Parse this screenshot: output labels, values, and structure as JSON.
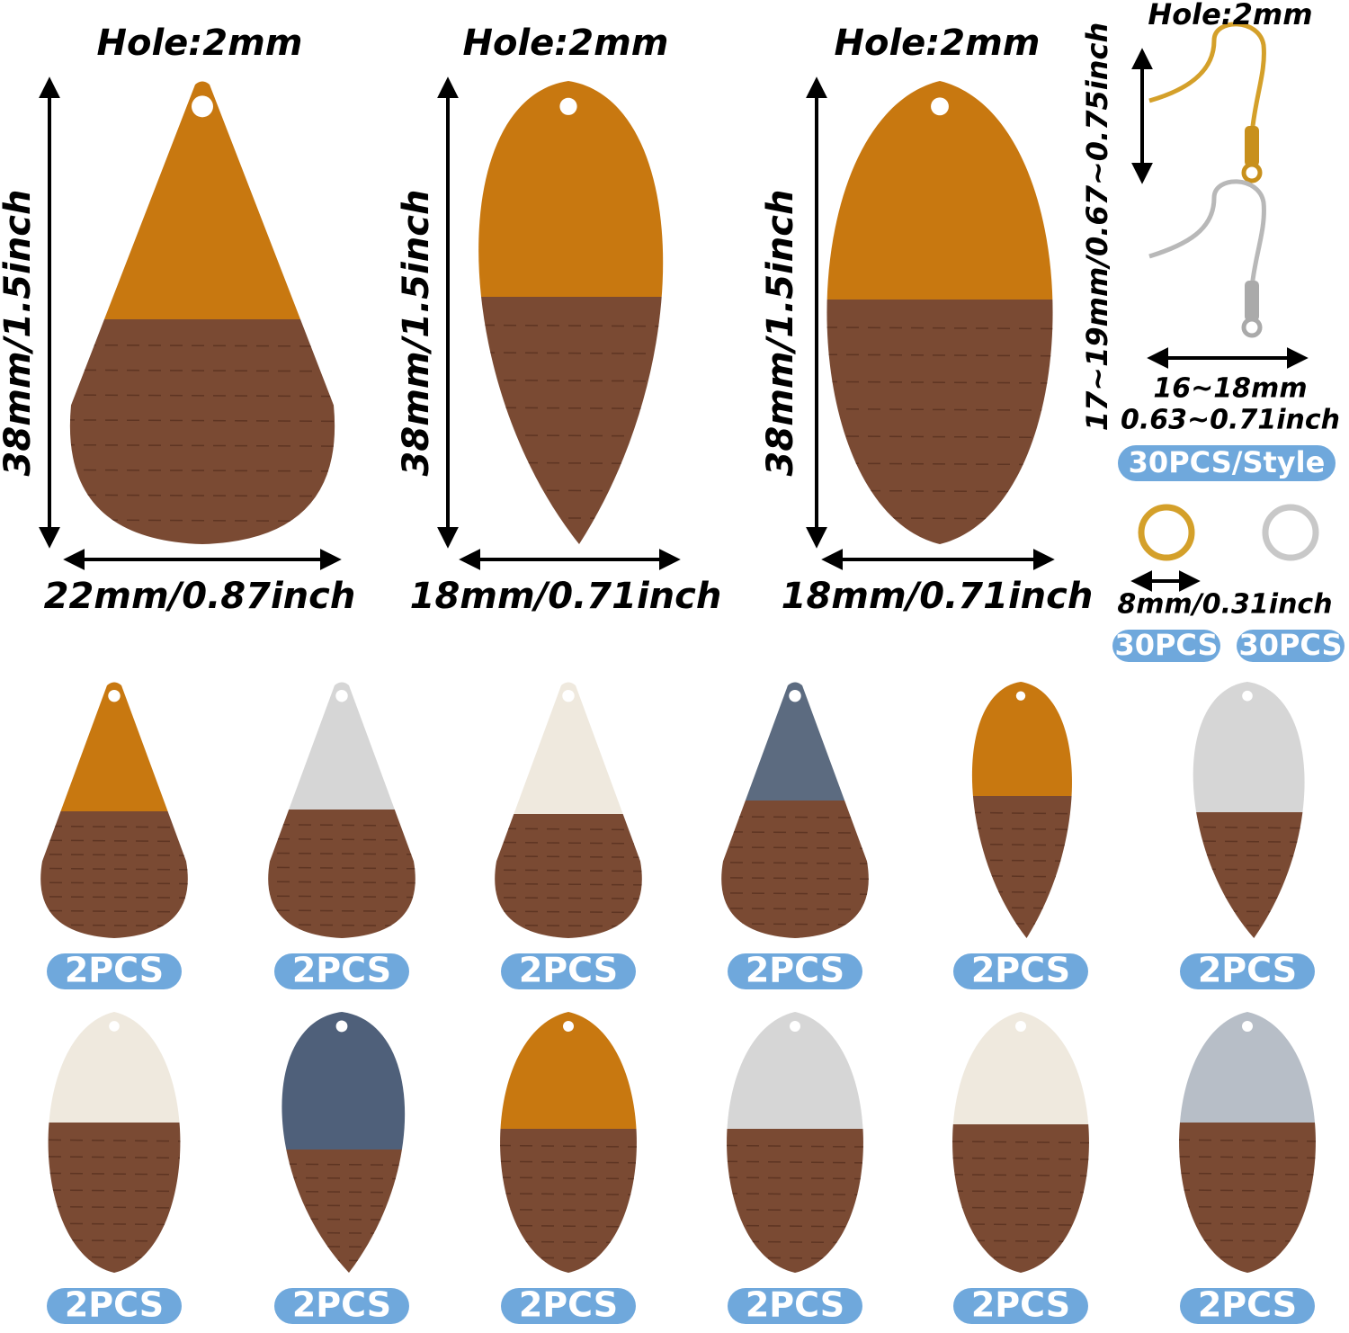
{
  "large_pendants": [
    {
      "hole": "Hole:2mm",
      "height": "38mm/1.5inch",
      "width": "22mm/0.87inch"
    },
    {
      "hole": "Hole:2mm",
      "height": "38mm/1.5inch",
      "width": "18mm/0.71inch"
    },
    {
      "hole": "Hole:2mm",
      "height": "38mm/1.5inch",
      "width": "18mm/0.71inch"
    }
  ],
  "ear_hooks": {
    "hole": "Hole:2mm",
    "height": "17~19mm/0.67~0.75inch",
    "width": "16~18mm",
    "width_inch": "0.63~0.71inch",
    "quantity": "30PCS/Style"
  },
  "jump_rings": {
    "size": "8mm/0.31inch",
    "quantities": [
      "30PCS",
      "30PCS"
    ]
  },
  "pendant_grid": {
    "rows": [
      [
        "2PCS",
        "2PCS",
        "2PCS",
        "2PCS",
        "2PCS",
        "2PCS"
      ],
      [
        "2PCS",
        "2PCS",
        "2PCS",
        "2PCS",
        "2PCS",
        "2PCS"
      ]
    ]
  }
}
